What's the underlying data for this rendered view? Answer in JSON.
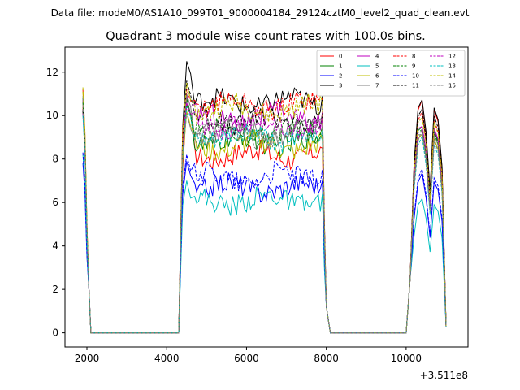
{
  "figure": {
    "suptitle": "Data file: modeM0/AS1A10_099T01_9000004184_29124cztM0_level2_quad_clean.evt",
    "title": "Quadrant 3 module wise count rates with 100.0s bins.",
    "x_offset_label": "+3.511e8"
  },
  "chart_data": {
    "type": "line",
    "title": "Quadrant 3 module wise count rates with 100.0s bins.",
    "xlabel": "",
    "ylabel": "",
    "x_offset": "+3.511e8",
    "xlim": [
      1450,
      11550
    ],
    "ylim": [
      -0.65,
      13.15
    ],
    "xticks": [
      2000,
      4000,
      6000,
      8000,
      10000
    ],
    "yticks": [
      0,
      2,
      4,
      6,
      8,
      10,
      12
    ],
    "grid": false,
    "legend_position": "top-right",
    "segments": [
      {
        "from": 1900,
        "to": 2100
      },
      {
        "from": 4300,
        "to": 8000
      },
      {
        "from": 10000,
        "to": 11000
      }
    ],
    "series": [
      {
        "name": "0",
        "color": "#ff0000",
        "dash": false,
        "level": 8.2,
        "start": 11.2,
        "peak": 10.5,
        "end3": 10.8
      },
      {
        "name": "1",
        "color": "#008000",
        "dash": false,
        "level": 8.8,
        "start": 10.8,
        "peak": 10.8,
        "end3": 9.8
      },
      {
        "name": "2",
        "color": "#0000ff",
        "dash": false,
        "level": 6.7,
        "start": 7.8,
        "peak": 7.9,
        "end3": 7.3
      },
      {
        "name": "3",
        "color": "#000000",
        "dash": false,
        "level": 10.6,
        "start": 10.3,
        "peak": 12.5,
        "end3": 10.9
      },
      {
        "name": "4",
        "color": "#bf00bf",
        "dash": false,
        "level": 9.9,
        "start": 10.7,
        "peak": 10.9,
        "end3": 9.9
      },
      {
        "name": "5",
        "color": "#00bfbf",
        "dash": false,
        "level": 6.1,
        "start": 8.2,
        "peak": 7.0,
        "end3": 6.2
      },
      {
        "name": "6",
        "color": "#bfbf00",
        "dash": false,
        "level": 8.6,
        "start": 11.1,
        "peak": 10.2,
        "end3": 9.4
      },
      {
        "name": "7",
        "color": "#808080",
        "dash": false,
        "level": 9.3,
        "start": 10.9,
        "peak": 11.0,
        "end3": 9.6
      },
      {
        "name": "8",
        "color": "#ff0000",
        "dash": true,
        "level": 10.5,
        "start": 10.4,
        "peak": 11.2,
        "end3": 10.3
      },
      {
        "name": "9",
        "color": "#008000",
        "dash": true,
        "level": 9.2,
        "start": 10.6,
        "peak": 10.5,
        "end3": 9.7
      },
      {
        "name": "10",
        "color": "#0000ff",
        "dash": true,
        "level": 7.2,
        "start": 8.3,
        "peak": 8.2,
        "end3": 7.5
      },
      {
        "name": "11",
        "color": "#000000",
        "dash": true,
        "level": 9.8,
        "start": 10.2,
        "peak": 11.6,
        "end3": 10.5
      },
      {
        "name": "12",
        "color": "#bf00bf",
        "dash": true,
        "level": 9.6,
        "start": 10.1,
        "peak": 10.6,
        "end3": 9.9
      },
      {
        "name": "13",
        "color": "#00bfbf",
        "dash": true,
        "level": 9.0,
        "start": 10.0,
        "peak": 10.4,
        "end3": 9.1
      },
      {
        "name": "14",
        "color": "#bfbf00",
        "dash": true,
        "level": 10.3,
        "start": 11.3,
        "peak": 11.5,
        "end3": 10.2
      },
      {
        "name": "15",
        "color": "#808080",
        "dash": true,
        "level": 9.1,
        "start": 10.5,
        "peak": 10.1,
        "end3": 9.3
      }
    ]
  }
}
